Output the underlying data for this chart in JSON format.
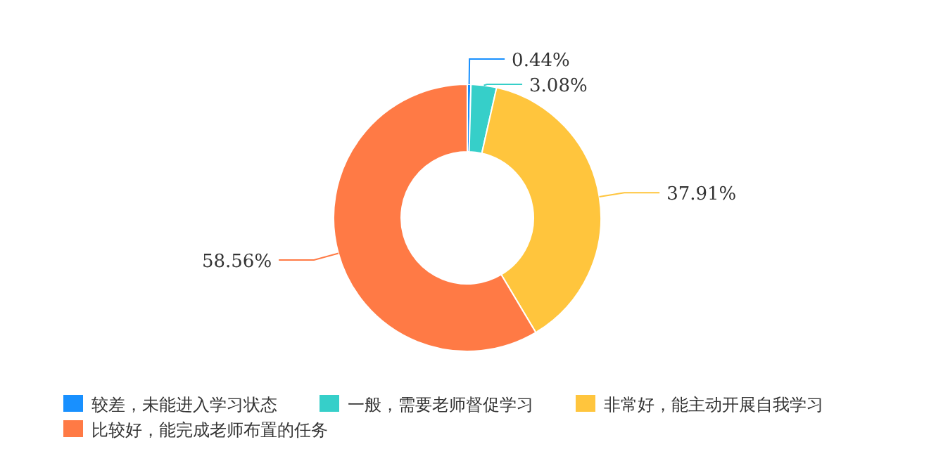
{
  "chart_data": {
    "type": "donut",
    "categories": [
      "较差，未能进入学习状态",
      "一般，需要老师督促学习",
      "非常好，能主动开展自我学习",
      "比较好，能完成老师布置的任务"
    ],
    "values": [
      0.44,
      3.08,
      37.91,
      58.56
    ],
    "colors": [
      "#1890ff",
      "#36cfc9",
      "#ffc53d",
      "#ff7a45"
    ],
    "value_labels": [
      "0.44%",
      "3.08%",
      "37.91%",
      "58.56%"
    ],
    "legend": "bottom"
  }
}
